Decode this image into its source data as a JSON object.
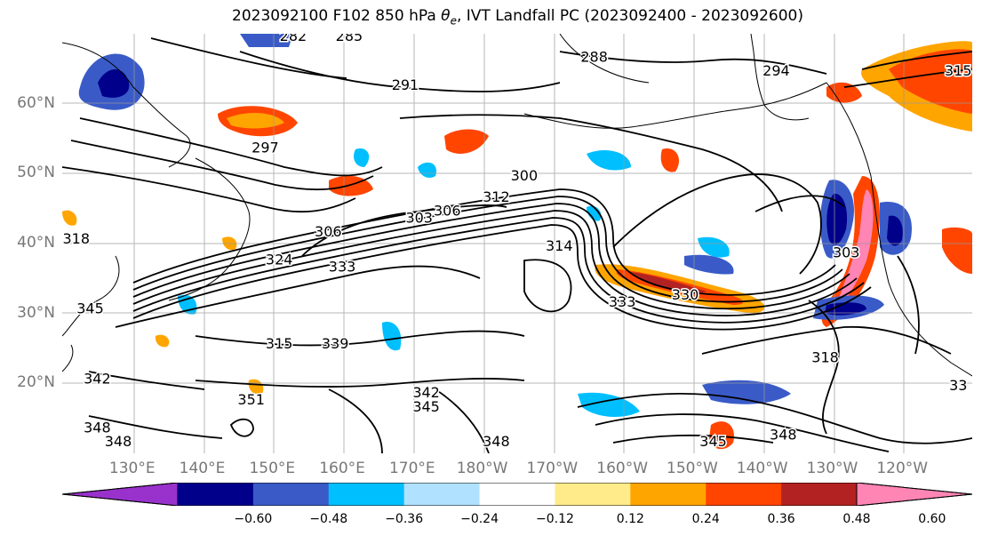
{
  "title_prefix": "2023092100 F102 850 hPa ",
  "title_theta": "θ",
  "title_theta_sub": "e",
  "title_suffix": ", IVT Landfall PC (2023092400 - 2023092600)",
  "lat_labels": [
    {
      "label": "60°N",
      "lat": 60
    },
    {
      "label": "50°N",
      "lat": 50
    },
    {
      "label": "40°N",
      "lat": 40
    },
    {
      "label": "30°N",
      "lat": 30
    },
    {
      "label": "20°N",
      "lat": 20
    }
  ],
  "lon_labels": [
    {
      "label": "130°E",
      "lon": 130
    },
    {
      "label": "140°E",
      "lon": 140
    },
    {
      "label": "150°E",
      "lon": 150
    },
    {
      "label": "160°E",
      "lon": 160
    },
    {
      "label": "170°E",
      "lon": 170
    },
    {
      "label": "180°W",
      "lon": 180
    },
    {
      "label": "170°W",
      "lon": 190
    },
    {
      "label": "160°W",
      "lon": 200
    },
    {
      "label": "150°W",
      "lon": 210
    },
    {
      "label": "140°W",
      "lon": 220
    },
    {
      "label": "130°W",
      "lon": 230
    },
    {
      "label": "120°W",
      "lon": 240
    }
  ],
  "colorbar": {
    "colors": [
      "#9932CC",
      "#00008B",
      "#3A5BC7",
      "#00BFFF",
      "#B0E2FF",
      "#FFFFFF",
      "#FFEB8A",
      "#FFA500",
      "#FF4500",
      "#B22222",
      "#FF85B4"
    ],
    "ticks": [
      "−0.60",
      "−0.48",
      "−0.36",
      "−0.24",
      "−0.12",
      "0.12",
      "0.24",
      "0.36",
      "0.48",
      "0.60"
    ]
  },
  "contour_labels": [
    {
      "text": "282",
      "lon": 153,
      "lat": 69
    },
    {
      "text": "285",
      "lon": 161,
      "lat": 69
    },
    {
      "text": "288",
      "lon": 196,
      "lat": 66
    },
    {
      "text": "294",
      "lon": 222,
      "lat": 64
    },
    {
      "text": "291",
      "lon": 169,
      "lat": 62
    },
    {
      "text": "297",
      "lon": 149,
      "lat": 53
    },
    {
      "text": "300",
      "lon": 186,
      "lat": 49
    },
    {
      "text": "303",
      "lon": 171,
      "lat": 43
    },
    {
      "text": "306",
      "lon": 175,
      "lat": 44
    },
    {
      "text": "312",
      "lon": 182,
      "lat": 46
    },
    {
      "text": "306",
      "lon": 158,
      "lat": 41
    },
    {
      "text": "314",
      "lon": 191,
      "lat": 39
    },
    {
      "text": "324",
      "lon": 151,
      "lat": 37
    },
    {
      "text": "333",
      "lon": 160,
      "lat": 36
    },
    {
      "text": "318",
      "lon": 122,
      "lat": 40
    },
    {
      "text": "330",
      "lon": 209,
      "lat": 32
    },
    {
      "text": "333",
      "lon": 200,
      "lat": 31
    },
    {
      "text": "345",
      "lon": 124,
      "lat": 30
    },
    {
      "text": "315",
      "lon": 151,
      "lat": 25
    },
    {
      "text": "339",
      "lon": 159,
      "lat": 25
    },
    {
      "text": "342",
      "lon": 125,
      "lat": 20
    },
    {
      "text": "318",
      "lon": 229,
      "lat": 23
    },
    {
      "text": "342",
      "lon": 172,
      "lat": 18
    },
    {
      "text": "345",
      "lon": 172,
      "lat": 16
    },
    {
      "text": "351",
      "lon": 147,
      "lat": 17
    },
    {
      "text": "348",
      "lon": 125,
      "lat": 13
    },
    {
      "text": "348",
      "lon": 128,
      "lat": 11
    },
    {
      "text": "348",
      "lon": 182,
      "lat": 11
    },
    {
      "text": "345",
      "lon": 213,
      "lat": 11
    },
    {
      "text": "348",
      "lon": 223,
      "lat": 12
    },
    {
      "text": "303",
      "lon": 232,
      "lat": 38
    },
    {
      "text": "33",
      "lon": 248,
      "lat": 19
    },
    {
      "text": "315",
      "lon": 248,
      "lat": 64
    }
  ]
}
